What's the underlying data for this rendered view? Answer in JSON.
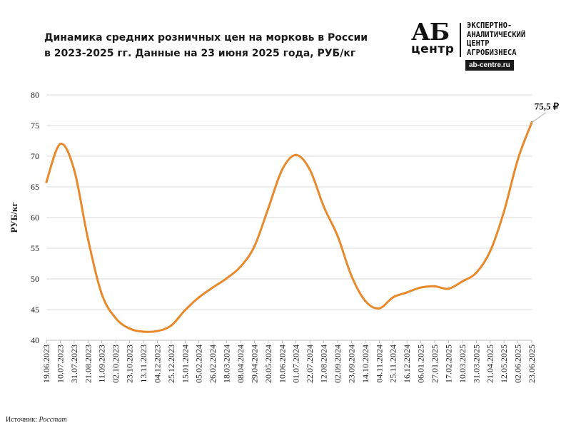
{
  "title": {
    "line1": "Динамика средних розничных цен на морковь в России",
    "line2": "в 2023-2025 гг. Данные на 23 июня 2025 года, РУБ/кг"
  },
  "logo": {
    "mark_top": "АБ",
    "mark_bottom": "центр",
    "lines": [
      "ЭКСПЕРТНО-",
      "АНАЛИТИЧЕСКИЙ",
      "ЦЕНТР",
      "АГРОБИЗНЕСА"
    ],
    "url": "ab-centre.ru"
  },
  "source": {
    "label": "Источник:",
    "name": "Росстат"
  },
  "chart_data": {
    "type": "line",
    "title": "Динамика средних розничных цен на морковь в России в 2023-2025 гг. Данные на 23 июня 2025 года, РУБ/кг",
    "xlabel": "",
    "ylabel": "РУБ/кг",
    "ylim": [
      40,
      80
    ],
    "yticks": [
      40,
      45,
      50,
      55,
      60,
      65,
      70,
      75,
      80
    ],
    "grid": true,
    "line_color": "#E8892C",
    "categories": [
      "19.06.2023",
      "10.07.2023",
      "31.07.2023",
      "21.08.2023",
      "11.09.2023",
      "02.10.2023",
      "23.10.2023",
      "13.11.2023",
      "04.12.2023",
      "25.12.2023",
      "15.01.2024",
      "05.02.2024",
      "26.02.2024",
      "18.03.2024",
      "08.04.2024",
      "29.04.2024",
      "20.05.2024",
      "10.06.2024",
      "01.07.2024",
      "22.07.2024",
      "12.08.2024",
      "02.09.2024",
      "23.09.2024",
      "14.10.2024",
      "04.11.2024",
      "25.11.2024",
      "16.12.2024",
      "06.01.2025",
      "27.01.2025",
      "17.02.2025",
      "10.03.2025",
      "31.03.2025",
      "21.04.2025",
      "12.05.2025",
      "02.06.2025",
      "23.06.2025"
    ],
    "values": [
      65.8,
      72.0,
      67.8,
      56.5,
      47.5,
      43.6,
      41.9,
      41.4,
      41.5,
      42.4,
      44.9,
      47.0,
      48.6,
      50.1,
      52.0,
      55.3,
      61.5,
      67.8,
      70.2,
      67.8,
      61.8,
      57.0,
      50.5,
      46.4,
      45.2,
      47.0,
      47.8,
      48.6,
      48.8,
      48.4,
      49.6,
      51.0,
      54.5,
      61.0,
      69.5,
      75.5
    ],
    "last_label": "75,5 ₽"
  }
}
